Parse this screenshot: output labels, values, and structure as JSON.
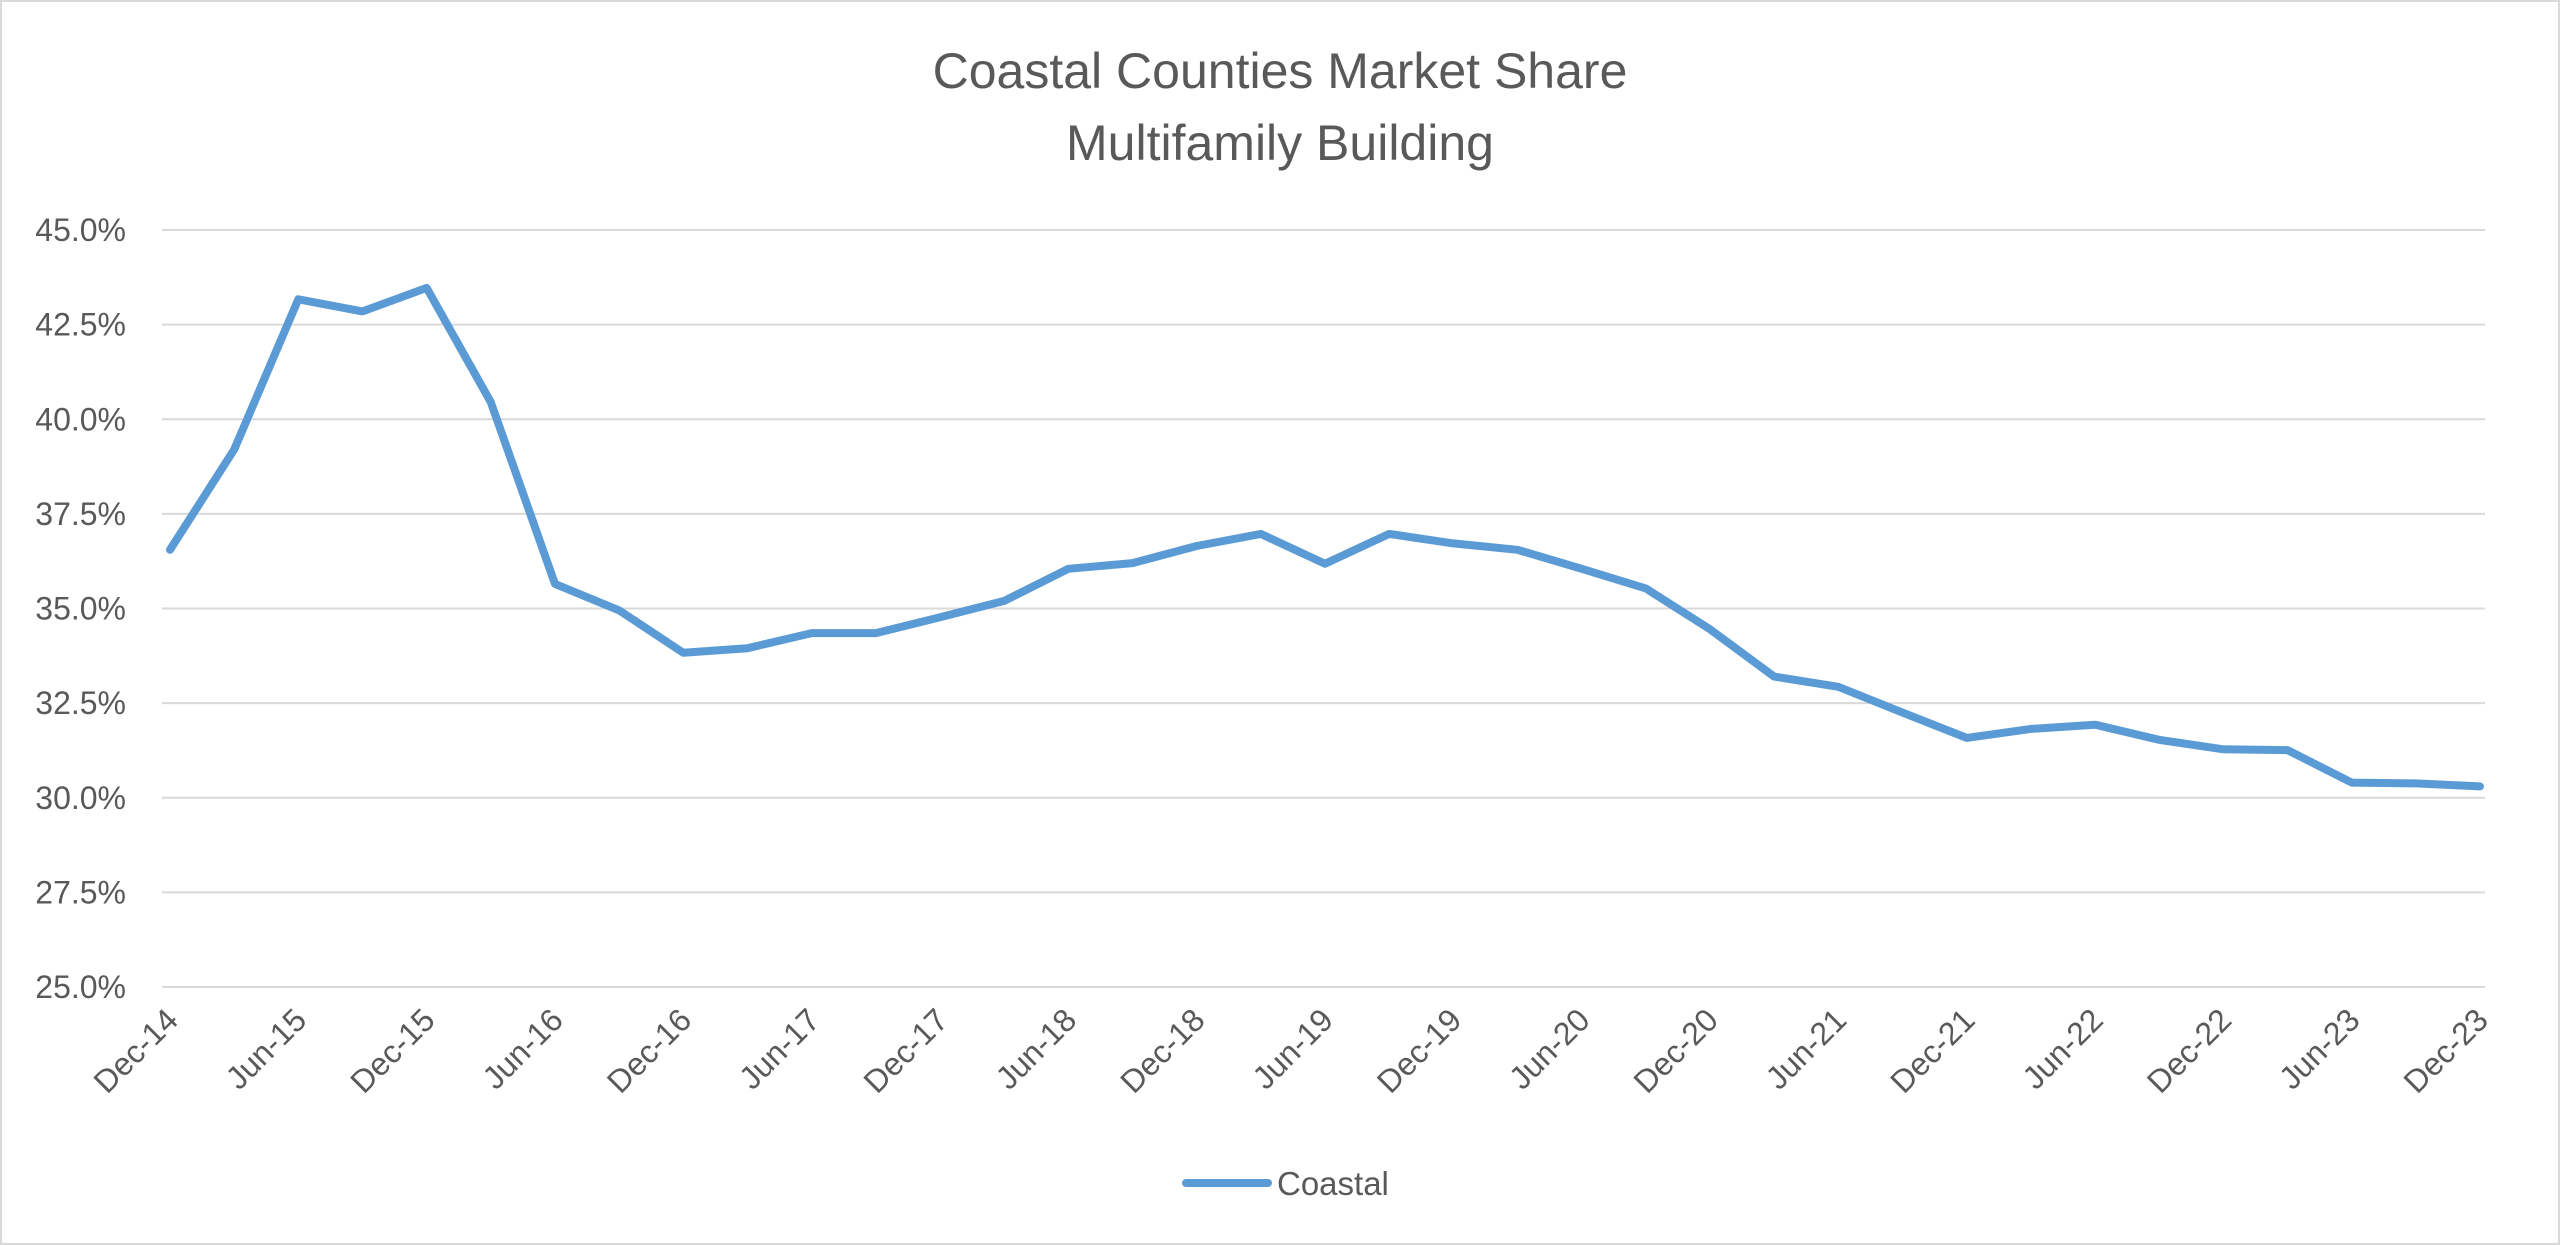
{
  "chart_data": {
    "type": "line",
    "title": "Coastal Counties Market Share",
    "subtitle": "Multifamily Building",
    "xlabel": "",
    "ylabel": "",
    "ylim": [
      0.25,
      0.45
    ],
    "y_ticks": [
      0.25,
      0.275,
      0.3,
      0.325,
      0.35,
      0.375,
      0.4,
      0.425,
      0.45
    ],
    "y_tick_labels": [
      "25.0%",
      "27.5%",
      "30.0%",
      "32.5%",
      "35.0%",
      "37.5%",
      "40.0%",
      "42.5%",
      "45.0%"
    ],
    "y_format": "percent_1dp",
    "grid": true,
    "legend_position": "bottom",
    "x": [
      "Dec-14",
      "Mar-15",
      "Jun-15",
      "Sep-15",
      "Dec-15",
      "Mar-16",
      "Jun-16",
      "Sep-16",
      "Dec-16",
      "Mar-17",
      "Jun-17",
      "Sep-17",
      "Dec-17",
      "Mar-18",
      "Jun-18",
      "Sep-18",
      "Dec-18",
      "Mar-19",
      "Jun-19",
      "Sep-19",
      "Dec-19",
      "Mar-20",
      "Jun-20",
      "Sep-20",
      "Dec-20",
      "Mar-21",
      "Jun-21",
      "Sep-21",
      "Dec-21",
      "Mar-22",
      "Jun-22",
      "Sep-22",
      "Dec-22",
      "Mar-23",
      "Jun-23",
      "Sep-23",
      "Dec-23"
    ],
    "x_tick_labels": [
      "Dec-14",
      "Jun-15",
      "Dec-15",
      "Jun-16",
      "Dec-16",
      "Jun-17",
      "Dec-17",
      "Jun-18",
      "Dec-18",
      "Jun-19",
      "Dec-19",
      "Jun-20",
      "Dec-20",
      "Jun-21",
      "Dec-21",
      "Jun-22",
      "Dec-22",
      "Jun-23",
      "Dec-23"
    ],
    "series": [
      {
        "name": "Coastal",
        "color": "#5b9bd5",
        "values": [
          0.3655,
          0.392,
          0.4317,
          0.4285,
          0.4347,
          0.4045,
          0.3565,
          0.3495,
          0.3383,
          0.3395,
          0.3435,
          0.3435,
          0.3477,
          0.352,
          0.3605,
          0.362,
          0.3665,
          0.3697,
          0.3618,
          0.3697,
          0.3672,
          0.3655,
          0.3605,
          0.3553,
          0.3445,
          0.332,
          0.3293,
          0.3225,
          0.3158,
          0.3182,
          0.3193,
          0.3153,
          0.3128,
          0.3126,
          0.304,
          0.3038,
          0.303
        ]
      }
    ]
  }
}
